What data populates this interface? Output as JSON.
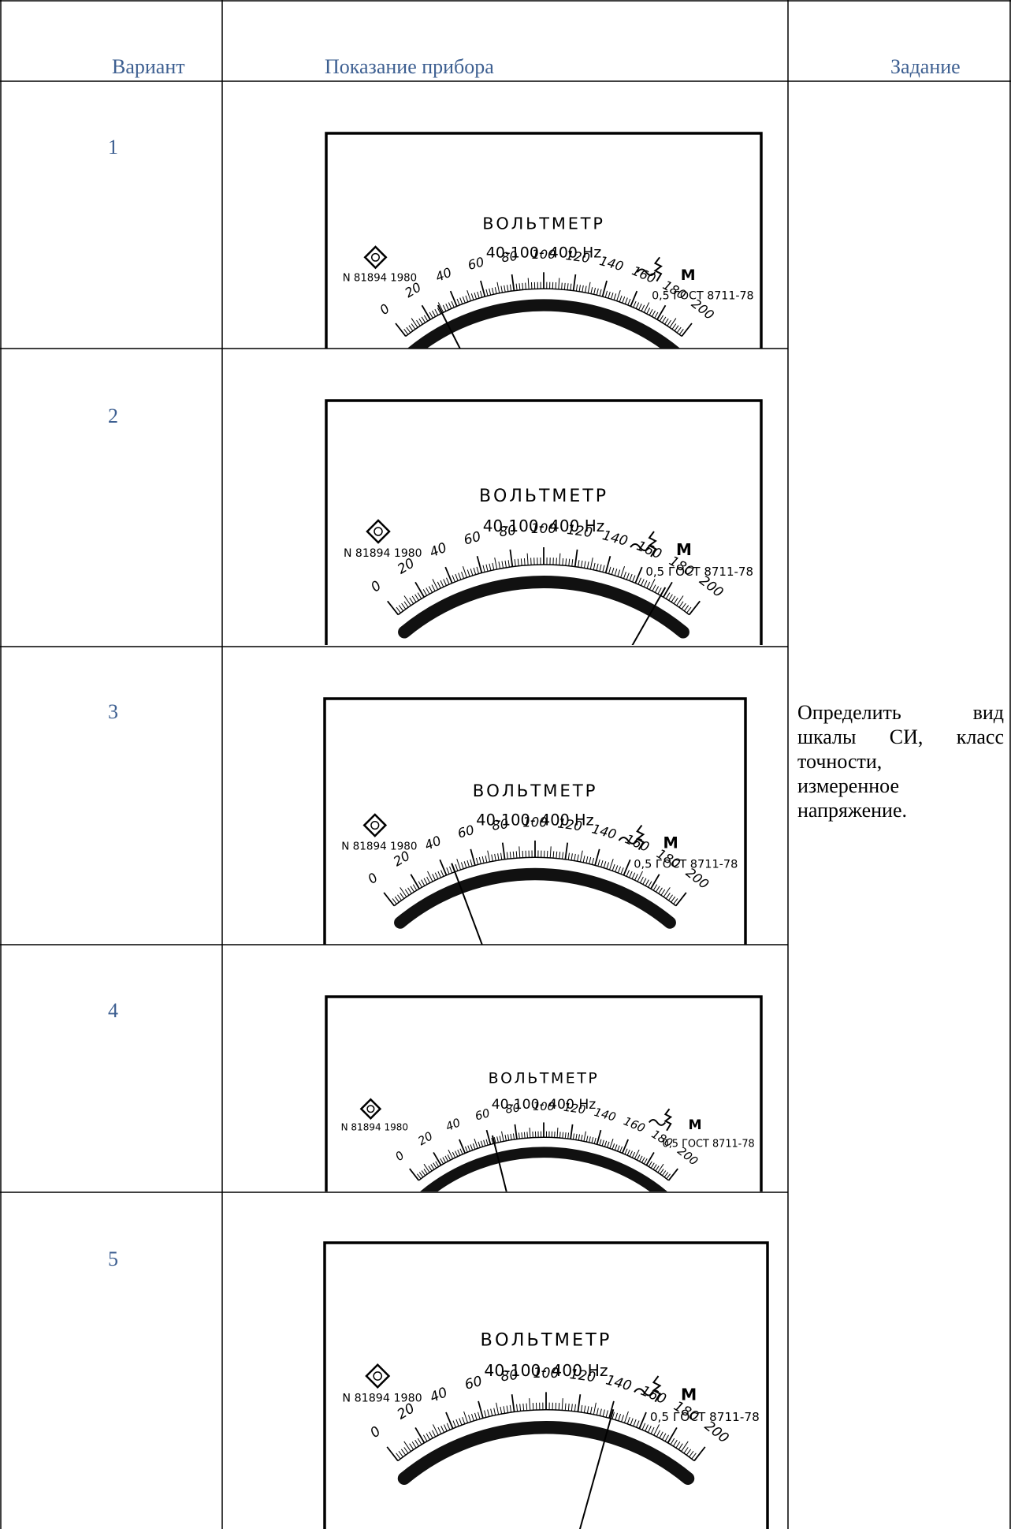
{
  "header": {
    "variant": "Вариант",
    "reading": "Показание прибора",
    "task": "Задание"
  },
  "task_text": {
    "line1": "Определить вид",
    "line2": "шкалы СИ, класс",
    "line3": "точности,",
    "line4": "измеренное",
    "line5": "напряжение."
  },
  "meter_labels": {
    "title": "ВОЛЬТМЕТР",
    "frequency": "40-100- 400 Hz",
    "serial": "N 81894  1980",
    "standard": "0,5 ГОСТ 8711-78",
    "symbol": "M",
    "scale_ticks": [
      "0",
      "20",
      "40",
      "60",
      "80",
      "100",
      "120",
      "140",
      "160",
      "180",
      "200"
    ]
  },
  "rows": [
    {
      "variant": "1",
      "needle_value": 29
    },
    {
      "variant": "2",
      "needle_value": 178
    },
    {
      "variant": "3",
      "needle_value": 46
    },
    {
      "variant": "4",
      "needle_value": 63
    },
    {
      "variant": "5",
      "needle_value": 141
    }
  ],
  "colors": {
    "header_text": "#3d5f91",
    "grid_line": "#000000"
  }
}
